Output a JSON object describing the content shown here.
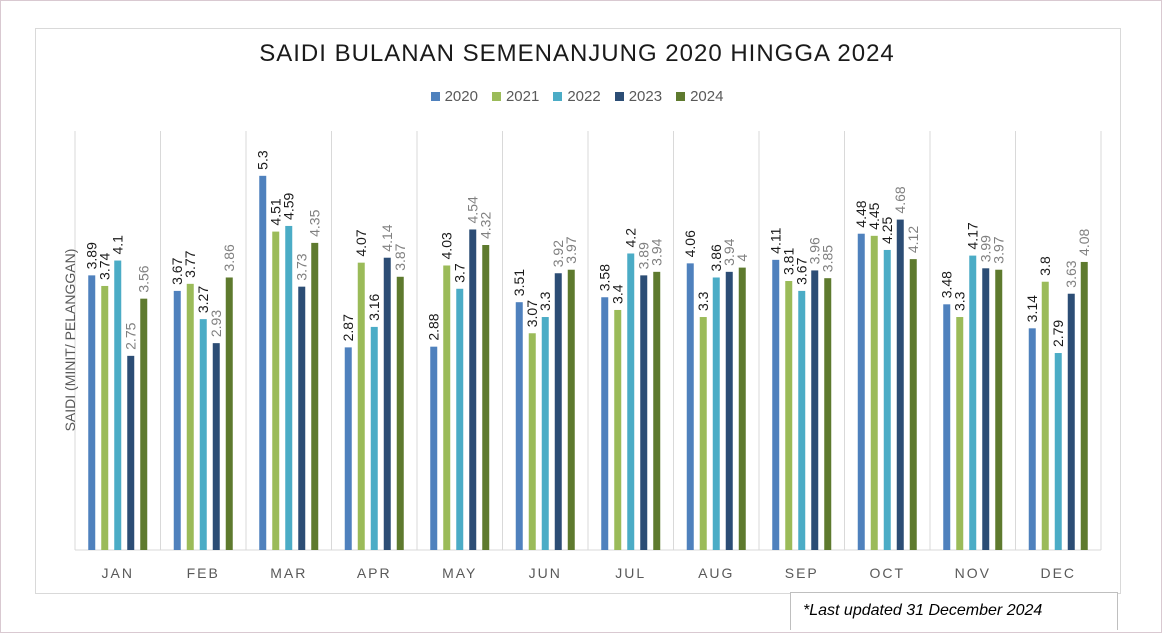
{
  "chart_data": {
    "type": "bar",
    "title": "SAIDI BULANAN SEMENANJUNG 2020 HINGGA 2024",
    "xlabel": "",
    "ylabel": "SAIDI (MINIT/ PELANGGAN)",
    "ylim": [
      0,
      5.5
    ],
    "grid": "vertical category separators",
    "legend_position": "top",
    "categories": [
      "JAN",
      "FEB",
      "MAR",
      "APR",
      "MAY",
      "JUN",
      "JUL",
      "AUG",
      "SEP",
      "OCT",
      "NOV",
      "DEC"
    ],
    "series": [
      {
        "name": "2020",
        "color": "#4f81bd",
        "values": [
          3.89,
          3.67,
          5.3,
          2.87,
          2.88,
          3.51,
          3.58,
          4.06,
          4.11,
          4.48,
          3.48,
          3.14
        ]
      },
      {
        "name": "2021",
        "color": "#9bbb59",
        "values": [
          3.74,
          3.77,
          4.51,
          4.07,
          4.03,
          3.07,
          3.4,
          3.3,
          3.81,
          4.45,
          3.3,
          3.8
        ]
      },
      {
        "name": "2022",
        "color": "#4bacc6",
        "values": [
          4.1,
          3.27,
          4.59,
          3.16,
          3.7,
          3.3,
          4.2,
          3.86,
          3.67,
          4.25,
          4.17,
          2.79
        ]
      },
      {
        "name": "2023",
        "color": "#2c4d75",
        "values": [
          2.75,
          2.93,
          3.73,
          4.14,
          4.54,
          3.92,
          3.89,
          3.94,
          3.96,
          4.68,
          3.99,
          3.63
        ]
      },
      {
        "name": "2024",
        "color": "#5e7a2e",
        "values": [
          3.56,
          3.86,
          4.35,
          3.87,
          4.32,
          3.97,
          3.94,
          4.0,
          3.85,
          4.12,
          3.97,
          4.08
        ]
      }
    ]
  },
  "footnote": "*Last updated 31 December 2024"
}
